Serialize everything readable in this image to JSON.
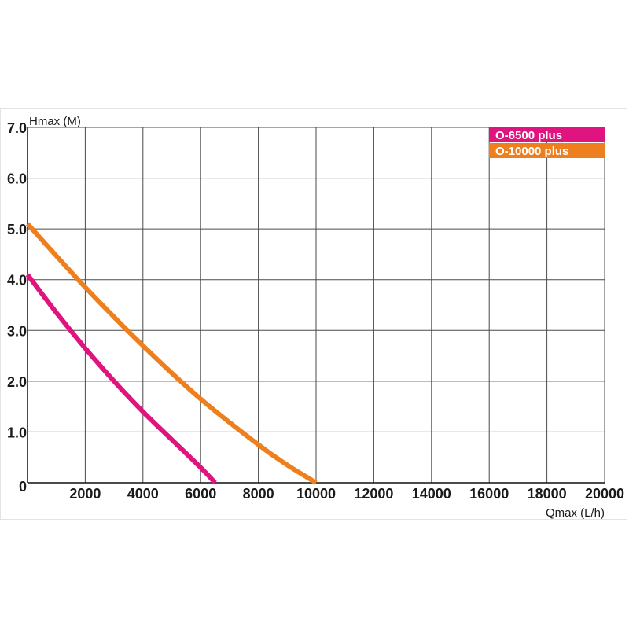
{
  "chart_data": {
    "type": "line",
    "xlabel": "Qmax (L/h)",
    "ylabel": "Hmax (M)",
    "xlim": [
      0,
      20000
    ],
    "ylim": [
      0,
      7
    ],
    "grid": true,
    "legend_position": "top-right",
    "x_ticks": [
      2000,
      4000,
      6000,
      8000,
      10000,
      12000,
      14000,
      16000,
      18000,
      20000
    ],
    "x_tick_labels": [
      "2000",
      "4000",
      "6000",
      "8000",
      "10000",
      "12000",
      "14000",
      "16000",
      "18000",
      "20000"
    ],
    "y_ticks": [
      0,
      1,
      2,
      3,
      4,
      5,
      6,
      7
    ],
    "y_tick_labels": [
      "0",
      "1.0",
      "2.0",
      "3.0",
      "4.0",
      "5.0",
      "6.0",
      "7.0"
    ],
    "series": [
      {
        "name": "O-6500 plus",
        "color": "#e0147f",
        "points": [
          [
            0,
            4.1
          ],
          [
            1000,
            3.35
          ],
          [
            2000,
            2.65
          ],
          [
            3000,
            2.0
          ],
          [
            4000,
            1.4
          ],
          [
            5000,
            0.85
          ],
          [
            6000,
            0.3
          ],
          [
            6500,
            0.0
          ]
        ]
      },
      {
        "name": "O-10000 plus",
        "color": "#ee7f1e",
        "points": [
          [
            0,
            5.1
          ],
          [
            2000,
            3.85
          ],
          [
            4000,
            2.7
          ],
          [
            6000,
            1.65
          ],
          [
            8000,
            0.75
          ],
          [
            9000,
            0.35
          ],
          [
            10000,
            0.0
          ]
        ]
      }
    ]
  }
}
